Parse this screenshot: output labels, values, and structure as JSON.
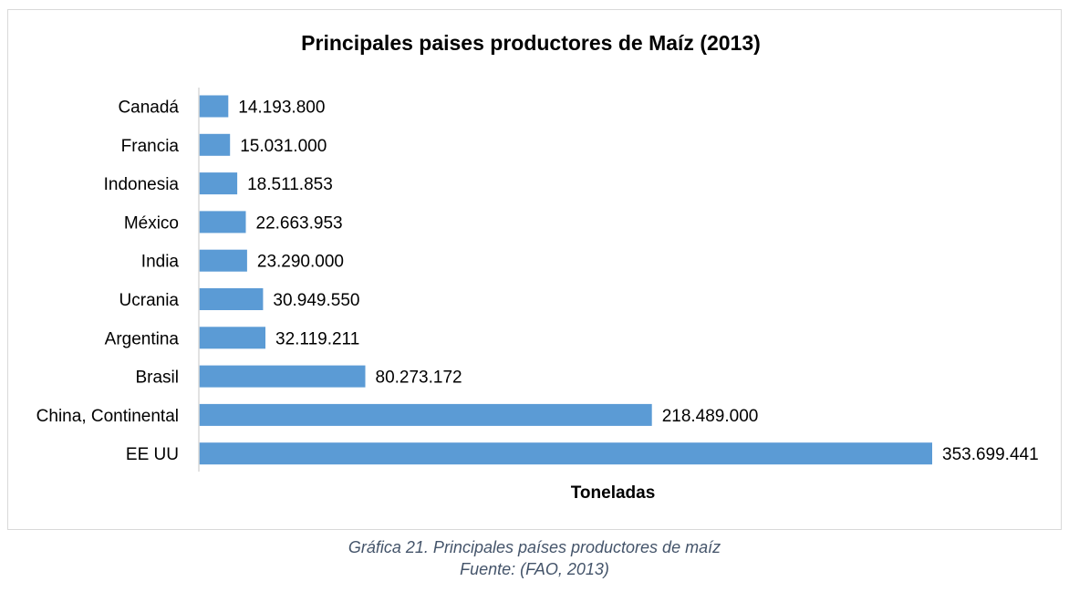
{
  "chart_data": {
    "type": "bar",
    "orientation": "horizontal",
    "title": "Principales paises productores de Maíz (2013)",
    "xlabel": "Toneladas",
    "ylabel": "",
    "categories": [
      "Canadá",
      "Francia",
      "Indonesia",
      "México",
      "India",
      "Ucrania",
      "Argentina",
      "Brasil",
      "China, Continental",
      "EE UU"
    ],
    "values": [
      14193800,
      15031000,
      18511853,
      22663953,
      23290000,
      30949550,
      32119211,
      80273172,
      218489000,
      353699441
    ],
    "value_labels": [
      "14.193.800",
      "15.031.000",
      "18.511.853",
      "22.663.953",
      "23.290.000",
      "30.949.550",
      "32.119.211",
      "80.273.172",
      "218.489.000",
      "353.699.441"
    ],
    "xlim": [
      0,
      353699441
    ],
    "bar_color": "#5b9bd5",
    "axis_color": "#d9d9d9",
    "grid": false,
    "legend": "none"
  },
  "caption": {
    "line1": "Gráfica 21. Principales países productores de maíz",
    "line2": "Fuente: (FAO, 2013)"
  }
}
